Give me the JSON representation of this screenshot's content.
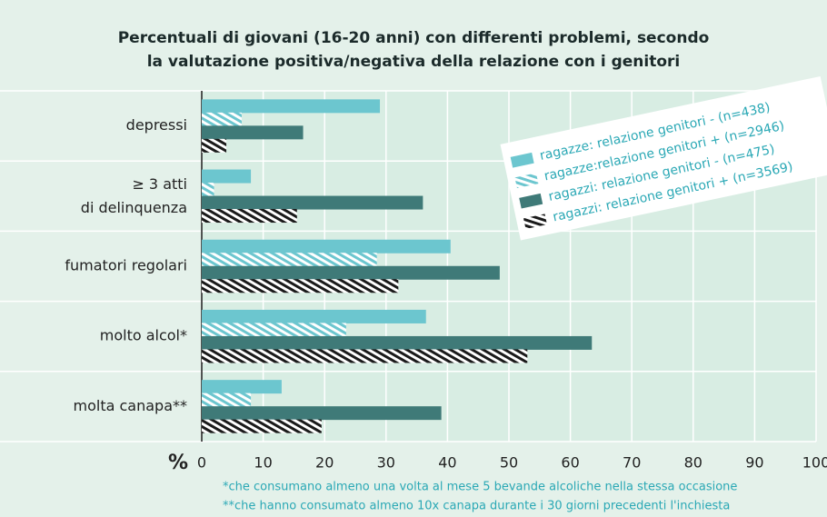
{
  "chart_data": {
    "type": "barh",
    "title": "Percentuali di giovani (16-20 anni) con differenti problemi, secondo\nla valutazione positiva/negativa della relazione con i genitori",
    "categories": [
      "depressi",
      "≥ 3 atti\ndi delinquenza",
      "fumatori regolari",
      "molto alcol*",
      "molta canapa**"
    ],
    "series": [
      {
        "name": "ragazze: relazione genitori - (n=438)",
        "color": "#6cc6cf",
        "hatch": false,
        "values": [
          29,
          8,
          40.5,
          36.5,
          13
        ]
      },
      {
        "name": "ragazze:relazione genitori + (n=2946)",
        "color": "#6cc6cf",
        "hatch": true,
        "values": [
          6.5,
          2,
          28.5,
          23.5,
          8
        ]
      },
      {
        "name": "ragazzi: relazione genitori - (n=475)",
        "color": "#3f7a78",
        "hatch": false,
        "values": [
          16.5,
          36,
          48.5,
          63.5,
          39
        ]
      },
      {
        "name": "ragazzi: relazione genitori + (n=3569)",
        "color": "#1a1a1a",
        "hatch": true,
        "values": [
          4,
          15.5,
          32,
          53,
          19.5
        ]
      }
    ],
    "xlabel": "%",
    "xlim": [
      0,
      100
    ],
    "xticks": [
      0,
      10,
      20,
      30,
      40,
      50,
      60,
      70,
      80,
      90,
      100
    ],
    "grid": true,
    "notes": [
      "*che consumano almeno una volta al mese 5 bevande alcoliche nella stessa occasione",
      "**che hanno consumato almeno 10x canapa durante i 30 giorni precedenti l'inchiesta"
    ]
  }
}
